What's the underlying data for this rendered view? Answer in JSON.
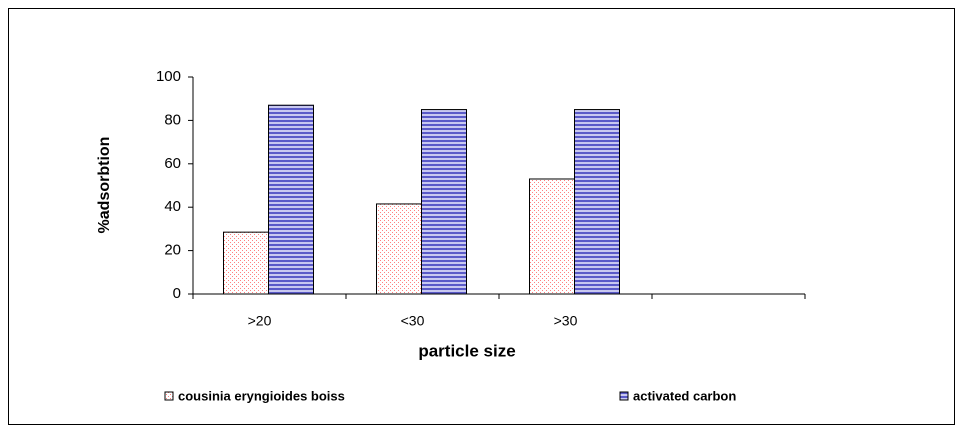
{
  "chart_data": {
    "type": "bar",
    "x_label": "particle size",
    "y_label": "%adsorbtion",
    "categories": [
      ">20",
      "<30",
      ">30",
      null
    ],
    "series": [
      {
        "name": "cousinia eryngioides boiss",
        "color": "#ff8080",
        "values": [
          28.5,
          41.5,
          53,
          null
        ]
      },
      {
        "name": "activated carbon",
        "color": "#5a5ac8",
        "values": [
          87,
          85,
          85,
          null
        ]
      }
    ],
    "ylim": [
      0,
      100
    ],
    "yticks": [
      0,
      20,
      40,
      60,
      80,
      100
    ],
    "grid": false
  }
}
